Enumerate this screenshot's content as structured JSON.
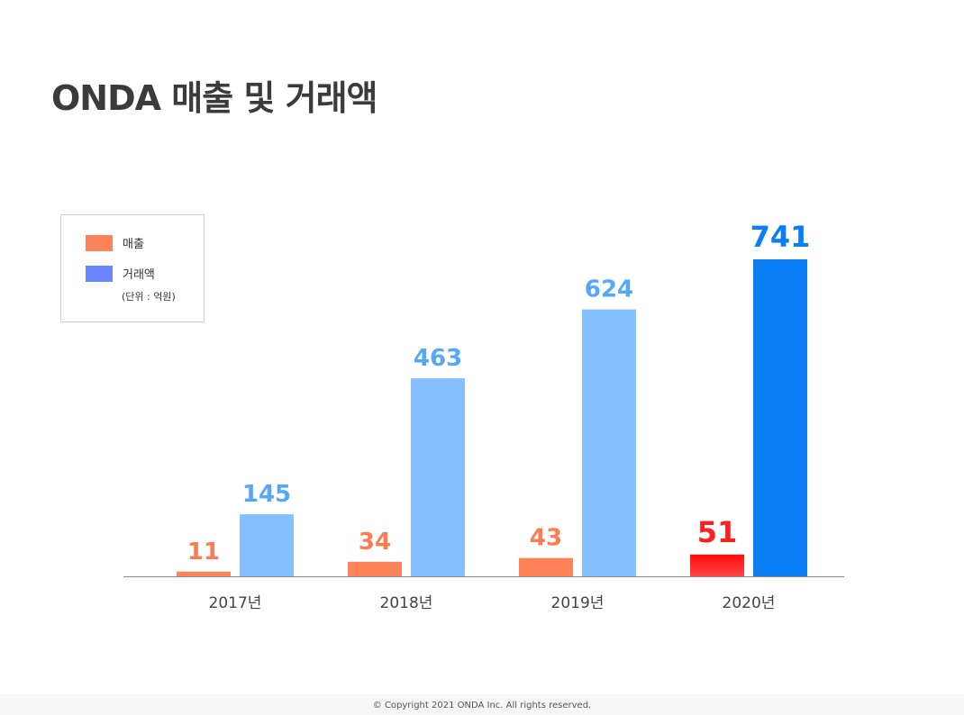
{
  "title": "ONDA 매출 및 거래액",
  "legend": {
    "unit": "(단위 : 억원)"
  },
  "footer": "© Copyright 2021 ONDA Inc. All rights reserved.",
  "chart_data": {
    "type": "bar",
    "categories": [
      "2017년",
      "2018년",
      "2019년",
      "2020년"
    ],
    "series": [
      {
        "name": "매출",
        "values": [
          11,
          34,
          43,
          51
        ],
        "color": "#ff8359",
        "label_color": "#ff7a50",
        "highlight_color": "#ff1e1e"
      },
      {
        "name": "거래액",
        "values": [
          145,
          463,
          624,
          741
        ],
        "color": "#85bfff",
        "label_color": "#57a7f7",
        "highlight_color": "#0a7ef5"
      }
    ],
    "legend_colors": [
      "#ff8359",
      "#6a86ff"
    ],
    "highlight_category": "2020년",
    "ylim": [
      0,
      741
    ],
    "legend_position": "top-left",
    "grid": false
  }
}
